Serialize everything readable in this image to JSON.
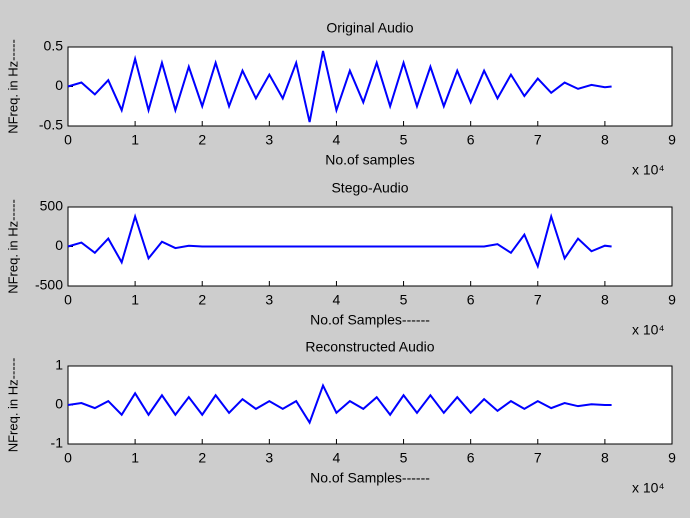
{
  "chart_data": [
    {
      "type": "line",
      "title": "Original Audio",
      "xlabel": "No.of samples",
      "ylabel": "NFreq. in Hz-----",
      "x_multiplier": "x 10⁴",
      "xlim": [
        0,
        9
      ],
      "xticks": [
        0,
        1,
        2,
        3,
        4,
        5,
        6,
        7,
        8,
        9
      ],
      "ylim": [
        -0.5,
        0.5
      ],
      "yticks": [
        -0.5,
        0,
        0.5
      ],
      "x": [
        0,
        0.2,
        0.4,
        0.6,
        0.8,
        1,
        1.2,
        1.4,
        1.6,
        1.8,
        2,
        2.2,
        2.4,
        2.6,
        2.8,
        3,
        3.2,
        3.4,
        3.6,
        3.8,
        4,
        4.2,
        4.4,
        4.6,
        4.8,
        5,
        5.2,
        5.4,
        5.6,
        5.8,
        6,
        6.2,
        6.4,
        6.6,
        6.8,
        7,
        7.2,
        7.4,
        7.6,
        7.8,
        8,
        8.1
      ],
      "series": [
        {
          "color": "#0000ff",
          "values": [
            0,
            0.05,
            -0.1,
            0.08,
            -0.3,
            0.35,
            -0.3,
            0.3,
            -0.3,
            0.25,
            -0.25,
            0.3,
            -0.25,
            0.2,
            -0.15,
            0.15,
            -0.15,
            0.3,
            -0.45,
            0.45,
            -0.3,
            0.2,
            -0.2,
            0.3,
            -0.25,
            0.3,
            -0.25,
            0.25,
            -0.25,
            0.2,
            -0.2,
            0.2,
            -0.15,
            0.15,
            -0.12,
            0.1,
            -0.08,
            0.05,
            -0.03,
            0.02,
            -0.01,
            0
          ]
        }
      ]
    },
    {
      "type": "line",
      "title": "Stego-Audio",
      "xlabel": "No.of Samples------",
      "ylabel": "NFreq. in Hz-----",
      "x_multiplier": "x 10⁴",
      "xlim": [
        0,
        9
      ],
      "xticks": [
        0,
        1,
        2,
        3,
        4,
        5,
        6,
        7,
        8,
        9
      ],
      "ylim": [
        -500,
        500
      ],
      "yticks": [
        -500,
        0,
        500
      ],
      "x": [
        0,
        0.2,
        0.4,
        0.6,
        0.8,
        1,
        1.2,
        1.4,
        1.6,
        1.8,
        2,
        2.2,
        2.4,
        2.6,
        2.8,
        3,
        3.2,
        3.4,
        3.6,
        3.8,
        4,
        4.2,
        4.4,
        4.6,
        4.8,
        5,
        5.2,
        5.4,
        5.6,
        5.8,
        6,
        6.2,
        6.4,
        6.6,
        6.8,
        7,
        7.2,
        7.4,
        7.6,
        7.8,
        8,
        8.1
      ],
      "series": [
        {
          "color": "#0000ff",
          "values": [
            0,
            50,
            -80,
            100,
            -200,
            380,
            -150,
            60,
            -20,
            10,
            0,
            0,
            0,
            0,
            0,
            0,
            0,
            0,
            0,
            0,
            0,
            0,
            0,
            0,
            0,
            0,
            0,
            0,
            0,
            0,
            0,
            0,
            30,
            -80,
            150,
            -250,
            380,
            -150,
            100,
            -60,
            10,
            0
          ]
        }
      ]
    },
    {
      "type": "line",
      "title": "Reconstructed Audio",
      "xlabel": "No.of Samples------",
      "ylabel": "NFreq. in Hz-----",
      "x_multiplier": "x 10⁴",
      "xlim": [
        0,
        9
      ],
      "xticks": [
        0,
        1,
        2,
        3,
        4,
        5,
        6,
        7,
        8,
        9
      ],
      "ylim": [
        -1,
        1
      ],
      "yticks": [
        -1,
        0,
        1
      ],
      "x": [
        0,
        0.2,
        0.4,
        0.6,
        0.8,
        1,
        1.2,
        1.4,
        1.6,
        1.8,
        2,
        2.2,
        2.4,
        2.6,
        2.8,
        3,
        3.2,
        3.4,
        3.6,
        3.8,
        4,
        4.2,
        4.4,
        4.6,
        4.8,
        5,
        5.2,
        5.4,
        5.6,
        5.8,
        6,
        6.2,
        6.4,
        6.6,
        6.8,
        7,
        7.2,
        7.4,
        7.6,
        7.8,
        8,
        8.1
      ],
      "series": [
        {
          "color": "#0000ff",
          "values": [
            0,
            0.05,
            -0.08,
            0.1,
            -0.25,
            0.3,
            -0.25,
            0.25,
            -0.25,
            0.2,
            -0.25,
            0.25,
            -0.2,
            0.15,
            -0.1,
            0.1,
            -0.1,
            0.1,
            -0.45,
            0.5,
            -0.2,
            0.1,
            -0.1,
            0.2,
            -0.25,
            0.25,
            -0.2,
            0.25,
            -0.2,
            0.2,
            -0.2,
            0.15,
            -0.15,
            0.1,
            -0.1,
            0.1,
            -0.08,
            0.05,
            -0.03,
            0.02,
            0,
            0
          ]
        }
      ]
    }
  ]
}
